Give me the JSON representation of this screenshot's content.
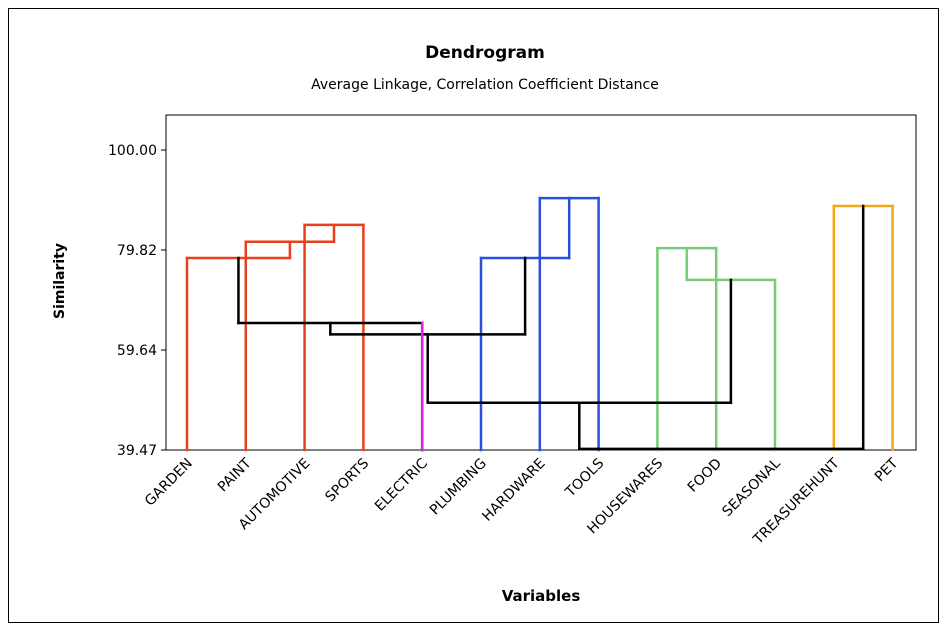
{
  "chart_data": {
    "type": "dendrogram",
    "title": "Dendrogram",
    "subtitle": "Average Linkage, Correlation Coefficient Distance",
    "xlabel": "Variables",
    "ylabel": "Similarity",
    "yticks": [
      "39.47",
      "59.64",
      "79.82",
      "100.00"
    ],
    "ylim": [
      100.0,
      39.47
    ],
    "leaves": [
      "GARDEN",
      "PAINT",
      "AUTOMOTIVE",
      "SPORTS",
      "ELECTRIC",
      "PLUMBING",
      "HARDWARE",
      "TOOLS",
      "HOUSEWARES",
      "FOOD",
      "SEASONAL",
      "TREASUREHUNT",
      "PET"
    ],
    "merges": [
      {
        "id": "c1",
        "left": "L3",
        "right": "L4",
        "similarity": 84.9,
        "color": "#e8401c"
      },
      {
        "id": "c2",
        "left": "L2",
        "right": "c1",
        "similarity": 81.5,
        "color": "#e8401c"
      },
      {
        "id": "c3",
        "left": "L1",
        "right": "c2",
        "similarity": 78.2,
        "color": "#e8401c"
      },
      {
        "id": "c4",
        "left": "L7",
        "right": "L8",
        "similarity": 90.3,
        "color": "#2a4fe0"
      },
      {
        "id": "c5",
        "left": "L6",
        "right": "c4",
        "similarity": 78.2,
        "color": "#2a4fe0"
      },
      {
        "id": "c6",
        "left": "L9",
        "right": "L10",
        "similarity": 80.2,
        "color": "#77cc77"
      },
      {
        "id": "c7",
        "left": "c6",
        "right": "L11",
        "similarity": 73.8,
        "color": "#77cc77"
      },
      {
        "id": "c8",
        "left": "L12",
        "right": "L13",
        "similarity": 88.7,
        "color": "#f0a818"
      },
      {
        "id": "c9",
        "left": "c3",
        "right": "L5",
        "similarity": 65.1,
        "color": "#000000"
      },
      {
        "id": "c10",
        "left": "c9",
        "right": "c5",
        "similarity": 62.8,
        "color": "#000000"
      },
      {
        "id": "c11",
        "left": "c10",
        "right": "c7",
        "similarity": 49.0,
        "color": "#000000"
      },
      {
        "id": "c12",
        "left": "c11",
        "right": "c8",
        "similarity": 39.7,
        "color": "#000000"
      }
    ],
    "leaf_colors": {
      "L5": "#e020e0"
    },
    "grid": false
  }
}
